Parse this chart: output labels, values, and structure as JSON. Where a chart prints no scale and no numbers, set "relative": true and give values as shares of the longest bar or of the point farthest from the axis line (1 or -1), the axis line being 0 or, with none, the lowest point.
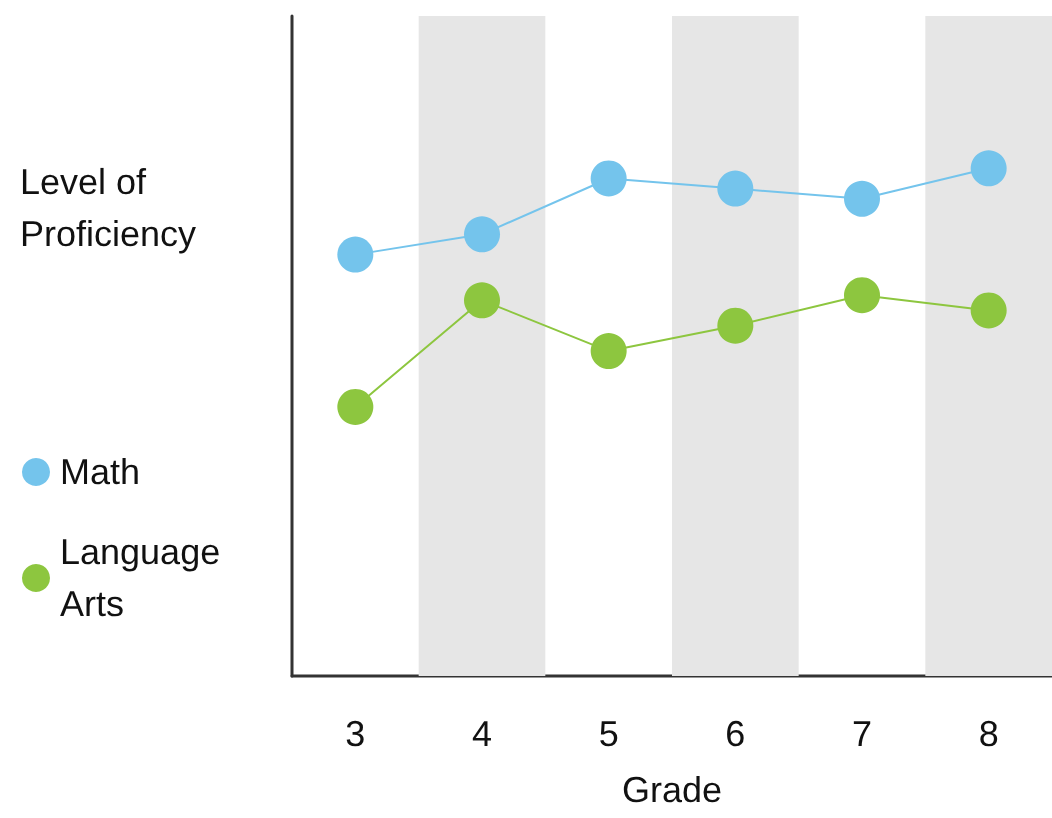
{
  "chart_data": {
    "type": "line",
    "xlabel": "Grade",
    "ylabel": "Level of Proficiency",
    "relative": true,
    "categories": [
      "3",
      "4",
      "5",
      "6",
      "7",
      "8"
    ],
    "series": [
      {
        "name": "Math",
        "color": "#74c4ec",
        "values": [
          0.83,
          0.87,
          0.98,
          0.96,
          0.94,
          1
        ]
      },
      {
        "name": "Language Arts",
        "color": "#8dc63f",
        "values": [
          0.53,
          0.74,
          0.64,
          0.69,
          0.75,
          0.72
        ]
      }
    ],
    "bands": [
      {
        "axis": "x",
        "from": "4",
        "to": "4",
        "color": "#e6e6e6"
      },
      {
        "axis": "x",
        "from": "6",
        "to": "6",
        "color": "#e6e6e6"
      },
      {
        "axis": "x",
        "from": "8",
        "to": "8",
        "color": "#e6e6e6"
      }
    ],
    "marker": "circle",
    "line_style": "solid",
    "grid": false,
    "legend": "left"
  }
}
